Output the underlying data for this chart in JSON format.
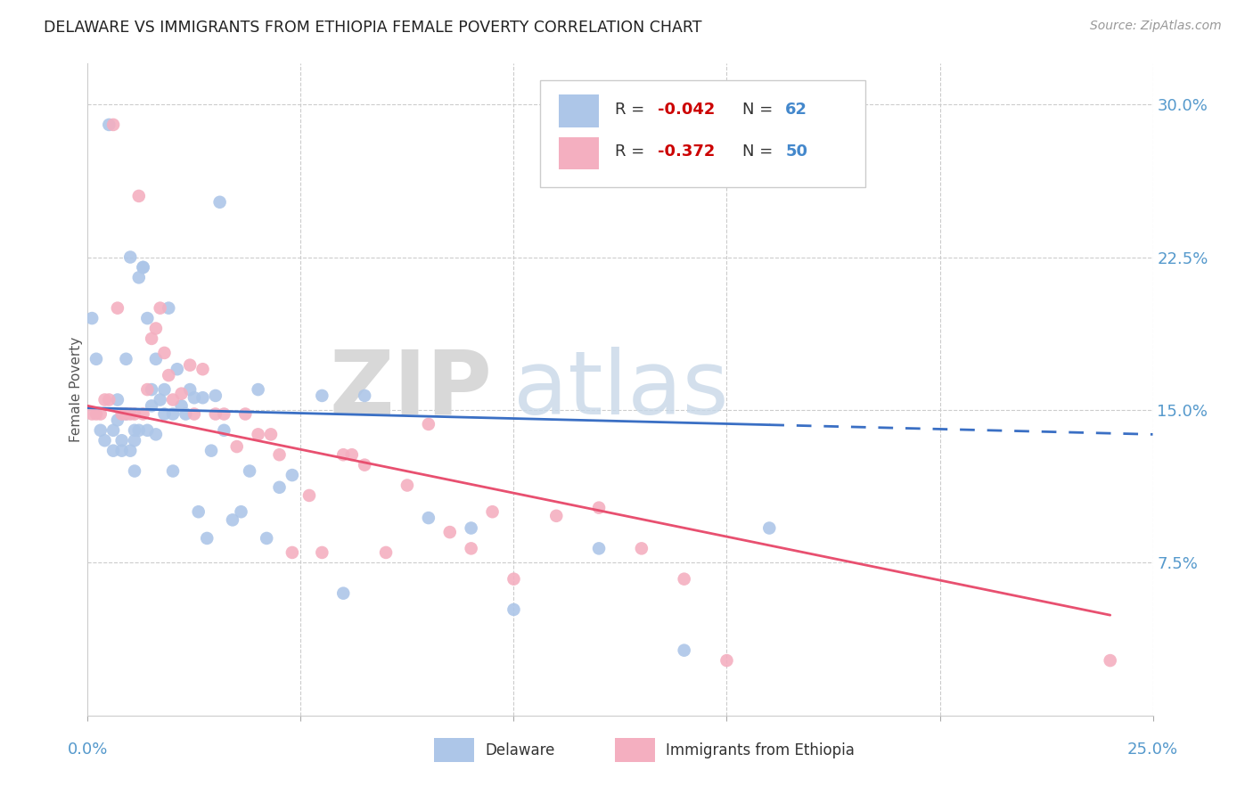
{
  "title": "DELAWARE VS IMMIGRANTS FROM ETHIOPIA FEMALE POVERTY CORRELATION CHART",
  "source": "Source: ZipAtlas.com",
  "ylabel": "Female Poverty",
  "ytick_vals": [
    0.075,
    0.15,
    0.225,
    0.3
  ],
  "ytick_labels": [
    "7.5%",
    "15.0%",
    "22.5%",
    "30.0%"
  ],
  "xlim": [
    0.0,
    0.25
  ],
  "ylim": [
    0.0,
    0.32
  ],
  "delaware_color": "#adc6e8",
  "ethiopia_color": "#f4afc0",
  "delaware_edge_color": "#5b8fd4",
  "ethiopia_edge_color": "#e8607a",
  "delaware_line_color": "#3a6fc4",
  "ethiopia_line_color": "#e85070",
  "legend_label_1": "Delaware",
  "legend_label_2": "Immigrants from Ethiopia",
  "delaware_R": "-0.042",
  "delaware_N": "62",
  "ethiopia_R": "-0.372",
  "ethiopia_N": "50",
  "watermark_zip": "ZIP",
  "watermark_atlas": "atlas",
  "delaware_x": [
    0.001,
    0.002,
    0.003,
    0.004,
    0.005,
    0.006,
    0.006,
    0.007,
    0.007,
    0.008,
    0.008,
    0.009,
    0.009,
    0.01,
    0.01,
    0.011,
    0.011,
    0.011,
    0.012,
    0.012,
    0.013,
    0.013,
    0.014,
    0.014,
    0.015,
    0.015,
    0.016,
    0.016,
    0.017,
    0.018,
    0.018,
    0.019,
    0.02,
    0.02,
    0.021,
    0.022,
    0.023,
    0.024,
    0.025,
    0.026,
    0.027,
    0.028,
    0.029,
    0.03,
    0.031,
    0.032,
    0.034,
    0.036,
    0.038,
    0.04,
    0.042,
    0.045,
    0.048,
    0.055,
    0.06,
    0.065,
    0.08,
    0.09,
    0.1,
    0.12,
    0.14,
    0.16
  ],
  "delaware_y": [
    0.195,
    0.175,
    0.14,
    0.135,
    0.29,
    0.14,
    0.13,
    0.155,
    0.145,
    0.135,
    0.13,
    0.175,
    0.148,
    0.13,
    0.225,
    0.14,
    0.135,
    0.12,
    0.215,
    0.14,
    0.22,
    0.22,
    0.14,
    0.195,
    0.16,
    0.152,
    0.175,
    0.138,
    0.155,
    0.16,
    0.148,
    0.2,
    0.12,
    0.148,
    0.17,
    0.152,
    0.148,
    0.16,
    0.156,
    0.1,
    0.156,
    0.087,
    0.13,
    0.157,
    0.252,
    0.14,
    0.096,
    0.1,
    0.12,
    0.16,
    0.087,
    0.112,
    0.118,
    0.157,
    0.06,
    0.157,
    0.097,
    0.092,
    0.052,
    0.082,
    0.032,
    0.092
  ],
  "ethiopia_x": [
    0.001,
    0.002,
    0.003,
    0.004,
    0.005,
    0.006,
    0.007,
    0.008,
    0.009,
    0.01,
    0.011,
    0.012,
    0.013,
    0.014,
    0.015,
    0.016,
    0.017,
    0.018,
    0.019,
    0.02,
    0.022,
    0.024,
    0.025,
    0.027,
    0.03,
    0.032,
    0.035,
    0.037,
    0.04,
    0.043,
    0.045,
    0.048,
    0.052,
    0.055,
    0.06,
    0.062,
    0.065,
    0.07,
    0.075,
    0.08,
    0.085,
    0.09,
    0.095,
    0.1,
    0.11,
    0.12,
    0.13,
    0.14,
    0.15,
    0.24
  ],
  "ethiopia_y": [
    0.148,
    0.148,
    0.148,
    0.155,
    0.155,
    0.29,
    0.2,
    0.148,
    0.148,
    0.148,
    0.148,
    0.255,
    0.148,
    0.16,
    0.185,
    0.19,
    0.2,
    0.178,
    0.167,
    0.155,
    0.158,
    0.172,
    0.148,
    0.17,
    0.148,
    0.148,
    0.132,
    0.148,
    0.138,
    0.138,
    0.128,
    0.08,
    0.108,
    0.08,
    0.128,
    0.128,
    0.123,
    0.08,
    0.113,
    0.143,
    0.09,
    0.082,
    0.1,
    0.067,
    0.098,
    0.102,
    0.082,
    0.067,
    0.027,
    0.027
  ]
}
